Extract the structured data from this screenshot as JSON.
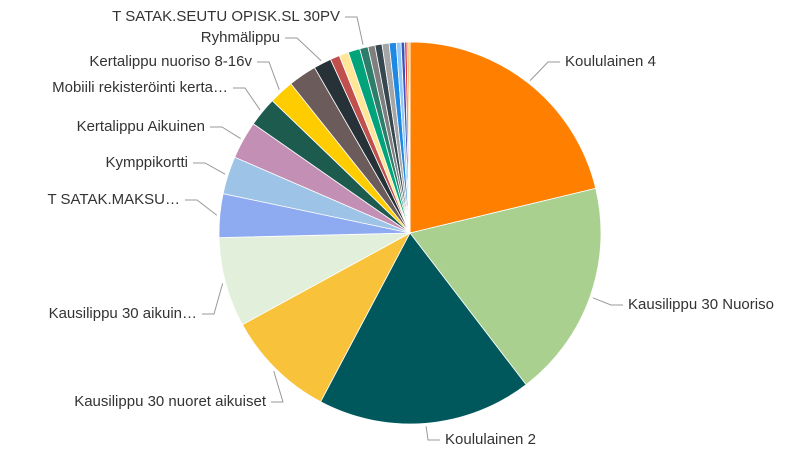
{
  "chart_data": {
    "type": "pie",
    "categories": [
      "Koululainen 4",
      "Kausilippu 30 Nuoriso",
      "Koululainen 2",
      "Kausilippu 30 nuoret aikuiset",
      "Kausilippu 30 aikuin…",
      "T SATAK.MAKSU…",
      "Kymppikortti",
      "Kertalippu Aikuinen",
      "Mobiili rekisteröinti kerta…",
      "Kertalippu nuoriso 8-16v",
      null,
      "Ryhmälippu",
      null,
      null,
      null,
      "T SATAK.SEUTU OPISK.SL 30PV",
      null,
      null,
      null,
      null,
      null,
      null,
      null,
      null,
      null
    ],
    "values": [
      21.3,
      18.4,
      18.2,
      9.3,
      7.6,
      3.7,
      3.2,
      3.2,
      2.5,
      2.1,
      2.4,
      1.5,
      0.8,
      0.8,
      1.0,
      0.7,
      0.6,
      0.6,
      0.6,
      0.6,
      0.4,
      0.3,
      0.2,
      0.15,
      0.1
    ],
    "colors": [
      "#ff8000",
      "#a9d08e",
      "#00585c",
      "#f8c23a",
      "#e2efda",
      "#8eaaf0",
      "#9dc3e6",
      "#c38fb5",
      "#1d5b4f",
      "#ffcc00",
      "#6b5b5b",
      "#263238",
      "#c0504d",
      "#ffe699",
      "#00a37a",
      "#2e7d6b",
      "#7f7f7f",
      "#37474f",
      "#a5a5a5",
      "#1e88e5",
      "#90caf9",
      "#3f51b5",
      "#e53935",
      "#fb8c00",
      "#7cb342"
    ]
  }
}
